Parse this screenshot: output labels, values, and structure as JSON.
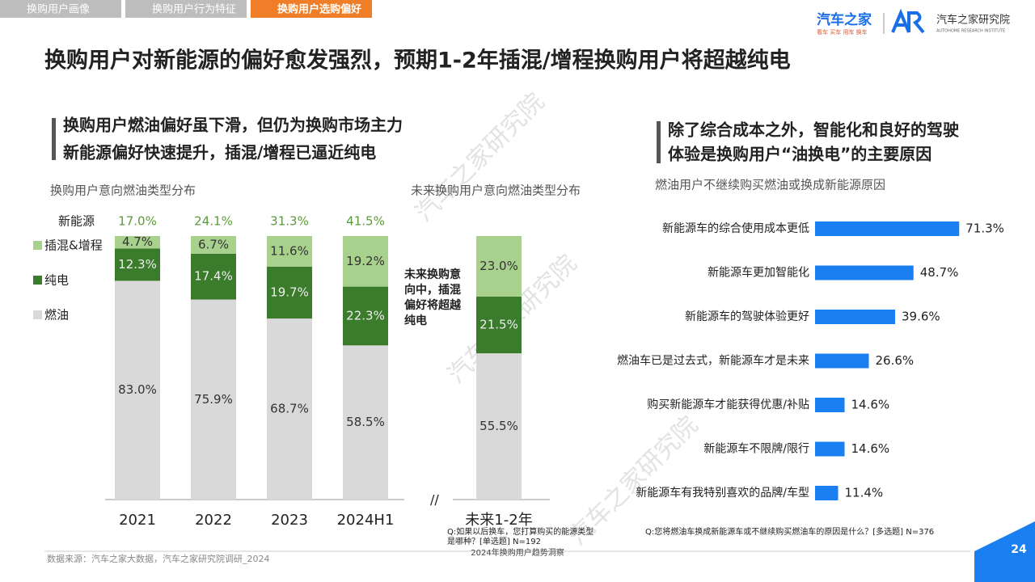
{
  "header": {
    "tabs": [
      "换购用户画像",
      "换购用户行为特征",
      "换购用户选购偏好"
    ],
    "active_tab": 2,
    "title": "换购用户对新能源的偏好愈发强烈，预期1-2年插混/增程换购用户将超越纯电",
    "logo": {
      "brand": "汽车之家",
      "tagline": "看车 买车 用车 换车",
      "institute": "汽车之家研究院",
      "institute_en": "AUTOHOME RESEARCH INSTITUTE"
    }
  },
  "left_subtitle": [
    "换购用户燃油偏好虽下滑，但仍为换购市场主力",
    "新能源偏好快速提升，插混/增程已逼近纯电"
  ],
  "right_subtitle": [
    "除了综合成本之外，智能化和良好的驾驶",
    "体验是换购用户“油换电”的主要原因"
  ],
  "watermark": "汽车之家研究院",
  "footer": {
    "source": "数据来源：汽车之家大数据，汽车之家研究院调研_2024",
    "report": "2024年换购用户趋势洞察",
    "page": "24"
  },
  "chart_data": [
    {
      "type": "bar",
      "stacked": true,
      "title": "换购用户意向燃油类型分布",
      "categories": [
        "2021",
        "2022",
        "2023",
        "2024H1"
      ],
      "ylim": [
        0,
        100
      ],
      "legend": "left",
      "series": [
        {
          "name": "燃油",
          "color": "#d9d9d9",
          "values": [
            83.0,
            75.9,
            68.7,
            58.5
          ],
          "value_labels": [
            "83.0%",
            "75.9%",
            "68.7%",
            "58.5%"
          ]
        },
        {
          "name": "纯电",
          "color": "#3b7b2c",
          "values": [
            12.3,
            17.4,
            19.7,
            22.3
          ],
          "value_labels": [
            "12.3%",
            "17.4%",
            "19.7%",
            "22.3%"
          ]
        },
        {
          "name": "插混&增程",
          "color": "#a9d18e",
          "values": [
            4.7,
            6.7,
            11.6,
            19.2
          ],
          "value_labels": [
            "4.7%",
            "6.7%",
            "11.6%",
            "19.2%"
          ]
        }
      ],
      "totals": {
        "name": "新能源",
        "color": "#5b9a3c",
        "values": [
          17.0,
          24.1,
          31.3,
          41.5
        ],
        "value_labels": [
          "17.0%",
          "24.1%",
          "31.3%",
          "41.5%"
        ]
      }
    },
    {
      "type": "bar",
      "stacked": true,
      "title": "未来换购用户意向燃油类型分布",
      "categories": [
        "未来1-2年"
      ],
      "ylim": [
        0,
        100
      ],
      "series": [
        {
          "name": "燃油",
          "color": "#d9d9d9",
          "values": [
            55.5
          ],
          "value_labels": [
            "55.5%"
          ]
        },
        {
          "name": "纯电",
          "color": "#3b7b2c",
          "values": [
            21.5
          ],
          "value_labels": [
            "21.5%"
          ]
        },
        {
          "name": "插混&增程",
          "color": "#a9d18e",
          "values": [
            23.0
          ],
          "value_labels": [
            "23.0%"
          ]
        }
      ],
      "annotation": [
        "未来换购意",
        "向中，插混",
        "偏好将超越",
        "纯电"
      ],
      "note": [
        "Q:如果以后换车，您打算购买的能源类型",
        "是哪种？[单选题] N=192"
      ]
    },
    {
      "type": "barh",
      "title": "燃油用户不继续购买燃油或换成新能源原因",
      "color": "#1a7ff0",
      "xlim": [
        0,
        80
      ],
      "categories": [
        "新能源车的综合使用成本更低",
        "新能源车更加智能化",
        "新能源车的驾驶体验更好",
        "燃油车已是过去式，新能源车才是未来",
        "购买新能源车才能获得优惠/补贴",
        "新能源车不限牌/限行",
        "新能源车有我特别喜欢的品牌/车型"
      ],
      "values": [
        71.3,
        48.7,
        39.6,
        26.6,
        14.6,
        14.6,
        11.4
      ],
      "value_labels": [
        "71.3%",
        "48.7%",
        "39.6%",
        "26.6%",
        "14.6%",
        "14.6%",
        "11.4%"
      ],
      "note": "Q:您将燃油车换成新能源车或不继续购买燃油车的原因是什么？[多选题] N=376"
    }
  ]
}
